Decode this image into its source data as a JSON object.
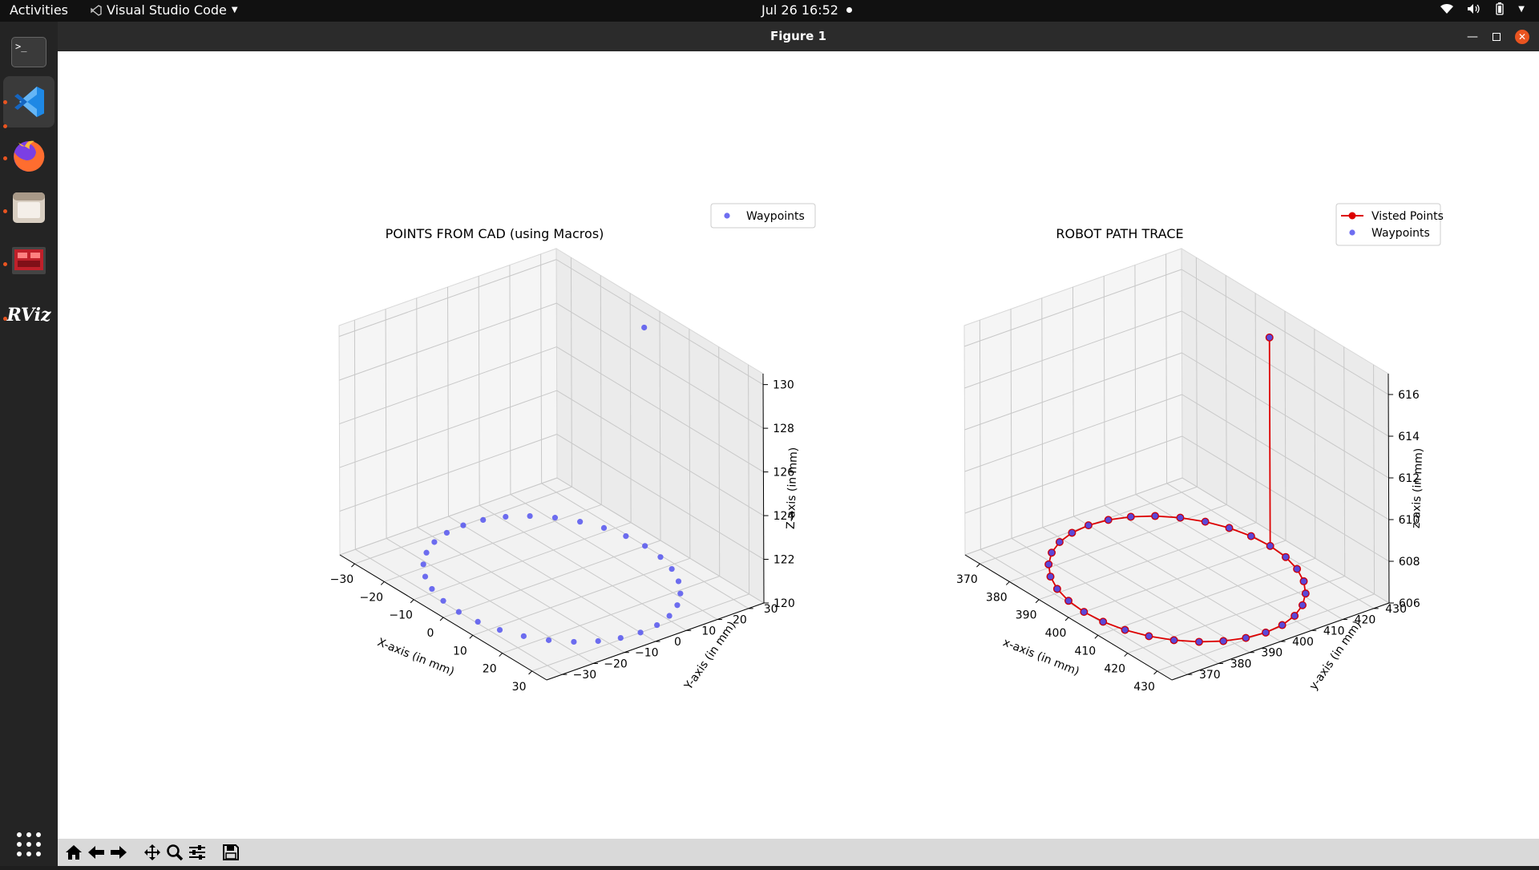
{
  "topbar": {
    "activities": "Activities",
    "app_name": "Visual Studio Code",
    "datetime": "Jul 26  16:52"
  },
  "dock": {
    "items": [
      "terminal-icon",
      "vscode-icon",
      "firefox-icon",
      "files-icon",
      "remmina-icon",
      "rviz-icon"
    ],
    "rviz_text": "RViz"
  },
  "window": {
    "title": "Figure 1"
  },
  "colors": {
    "waypoint": "#5555ee",
    "visited_line": "#dd0000",
    "visited_marker": "#800050"
  },
  "chart_data": [
    {
      "type": "scatter",
      "title": "POINTS FROM CAD (using Macros)",
      "xlabel": "X-axis (in mm)",
      "ylabel": "Y-axis (in mm)",
      "zlabel": "Z-axis (in mm)",
      "x_ticks": [
        "−30",
        "−20",
        "−10",
        "0",
        "10",
        "20",
        "30"
      ],
      "y_ticks": [
        "−30",
        "−20",
        "−10",
        "0",
        "10",
        "20",
        "30"
      ],
      "z_ticks": [
        "120",
        "122",
        "124",
        "126",
        "128",
        "130"
      ],
      "xlim": [
        -35,
        35
      ],
      "ylim": [
        -35,
        35
      ],
      "zlim": [
        120,
        130.5
      ],
      "legend": "top-right",
      "series": [
        {
          "name": "Waypoints",
          "circle": {
            "center_x": 0,
            "center_y": 0,
            "radius": 30,
            "z": 120,
            "count": 32
          },
          "extra_point": {
            "x": 0,
            "y": 30,
            "z": 130
          }
        }
      ]
    },
    {
      "type": "line",
      "title": "ROBOT PATH TRACE",
      "xlabel": "x-axis (in mm)",
      "ylabel": "y-axis (in mm)",
      "zlabel": "z-axis (in mm)",
      "x_ticks": [
        "370",
        "380",
        "390",
        "400",
        "410",
        "420",
        "430"
      ],
      "y_ticks": [
        "370",
        "380",
        "390",
        "400",
        "410",
        "420",
        "430"
      ],
      "z_ticks": [
        "606",
        "608",
        "610",
        "612",
        "614",
        "616"
      ],
      "xlim": [
        365,
        435
      ],
      "ylim": [
        365,
        435
      ],
      "zlim": [
        606,
        617
      ],
      "legend": "top-right",
      "series": [
        {
          "name": "Visted Points",
          "circle": {
            "center_x": 400,
            "center_y": 400,
            "radius": 30,
            "z": 606,
            "count": 32
          },
          "extra_point": {
            "x": 400,
            "y": 430,
            "z": 616
          }
        },
        {
          "name": "Waypoints",
          "circle": {
            "center_x": 400,
            "center_y": 400,
            "radius": 30,
            "z": 606,
            "count": 32
          },
          "extra_point": {
            "x": 400,
            "y": 430,
            "z": 616
          }
        }
      ]
    }
  ]
}
